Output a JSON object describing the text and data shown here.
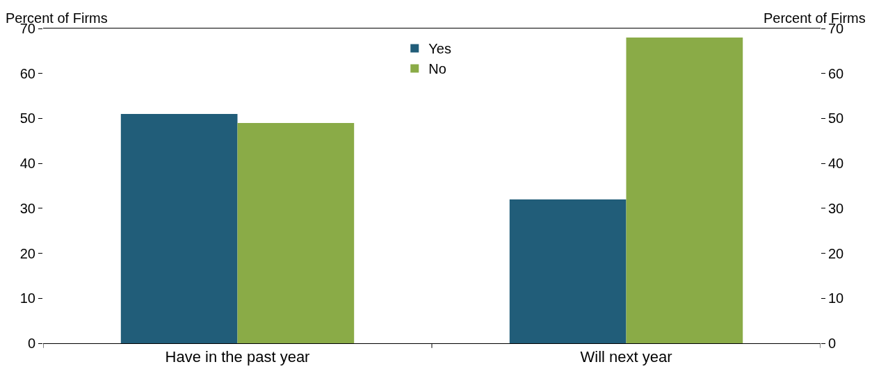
{
  "chart_data": {
    "type": "bar",
    "categories": [
      "Have in the past year",
      "Will next year"
    ],
    "series": [
      {
        "name": "Yes",
        "color": "#215d79",
        "values": [
          51,
          32
        ]
      },
      {
        "name": "No",
        "color": "#8aab47",
        "values": [
          49,
          68
        ]
      }
    ],
    "ylabel": "Percent of Firms",
    "y2label": "Percent of Firms",
    "ylim": [
      0,
      70
    ],
    "yticks": [
      0,
      10,
      20,
      30,
      40,
      50,
      60,
      70
    ],
    "y2lim": [
      0,
      70
    ],
    "y2ticks": [
      0,
      10,
      20,
      30,
      40,
      50,
      60,
      70
    ],
    "legend": "top"
  }
}
